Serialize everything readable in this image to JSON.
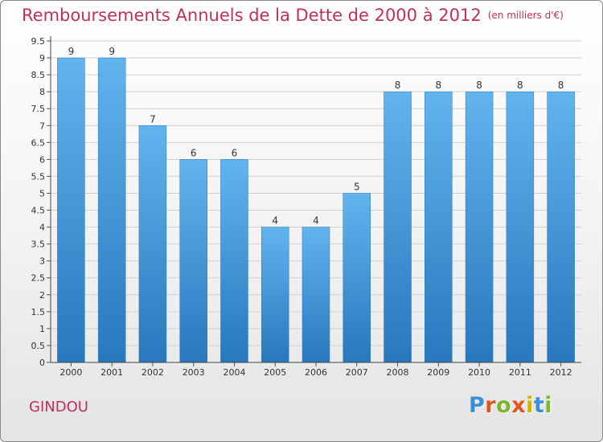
{
  "title": "Remboursements Annuels de la Dette de 2000 à 2012",
  "subtitle": "(en milliers d'€)",
  "town": "GINDOU",
  "logo": {
    "text": "Proxiti",
    "letter_colors": [
      "#3a8fd6",
      "#e0561b",
      "#7cb82f",
      "#e0561b",
      "#d4b000",
      "#3a8fd6",
      "#7cb82f"
    ]
  },
  "colors": {
    "bar_light": "#62b4ee",
    "bar_dark": "#2778bd",
    "title": "#c0305a"
  },
  "chart_data": {
    "type": "bar",
    "categories": [
      "2000",
      "2001",
      "2002",
      "2003",
      "2004",
      "2005",
      "2006",
      "2007",
      "2008",
      "2009",
      "2010",
      "2011",
      "2012"
    ],
    "values": [
      9,
      9,
      7,
      6,
      6,
      4,
      4,
      5,
      8,
      8,
      8,
      8,
      8
    ],
    "ylim": [
      0,
      9.5
    ],
    "yticks": [
      0,
      0.5,
      1,
      1.5,
      2,
      2.5,
      3,
      3.5,
      4,
      4.5,
      5,
      5.5,
      6,
      6.5,
      7,
      7.5,
      8,
      8.5,
      9,
      9.5
    ],
    "grid": true,
    "data_labels": true
  }
}
